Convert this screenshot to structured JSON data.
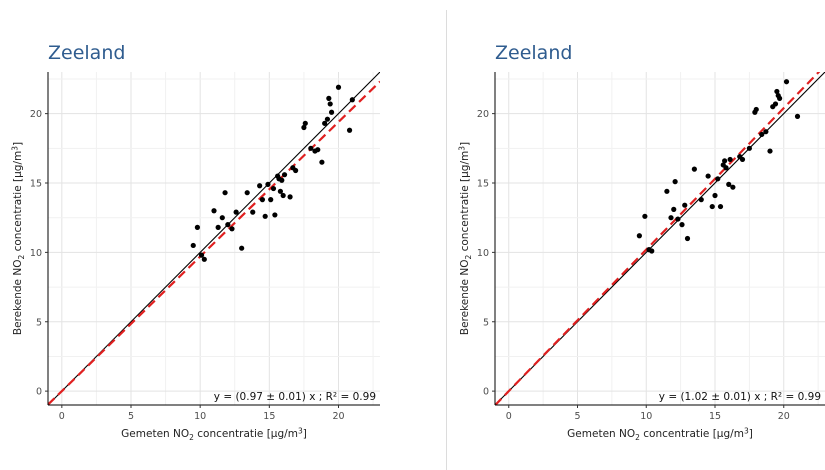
{
  "chart_data": [
    {
      "type": "scatter",
      "title": "Zeeland",
      "xlabel": {
        "pre": "Gemeten NO",
        "sub": "2",
        "post": " concentratie [µg/m",
        "sup": "3",
        "end": "]"
      },
      "ylabel": {
        "pre": "Berekende NO",
        "sub": "2",
        "post": " concentratie [µg/m",
        "sup": "3",
        "end": "]"
      },
      "xlim": [
        -1,
        23
      ],
      "ylim": [
        -1,
        23
      ],
      "xticks": [
        0,
        5,
        10,
        15,
        20
      ],
      "yticks": [
        0,
        5,
        10,
        15,
        20
      ],
      "grid": true,
      "equation": "y = (0.97 ± 0.01) x ; R² = 0.99",
      "slope": 0.97,
      "identity_line": true,
      "colors": {
        "points": "#000000",
        "fit": "#e02020",
        "identity": "#000000",
        "title": "#2f5c8f"
      },
      "points": [
        [
          9.5,
          10.5
        ],
        [
          9.8,
          11.8
        ],
        [
          10.1,
          9.8
        ],
        [
          10.3,
          9.5
        ],
        [
          11.0,
          13.0
        ],
        [
          11.3,
          11.8
        ],
        [
          11.6,
          12.5
        ],
        [
          11.8,
          14.3
        ],
        [
          12.0,
          12.0
        ],
        [
          12.3,
          11.7
        ],
        [
          12.6,
          12.9
        ],
        [
          13.0,
          10.3
        ],
        [
          13.4,
          14.3
        ],
        [
          13.8,
          12.9
        ],
        [
          14.3,
          14.8
        ],
        [
          14.5,
          13.8
        ],
        [
          14.7,
          12.6
        ],
        [
          14.9,
          14.9
        ],
        [
          15.1,
          13.8
        ],
        [
          15.3,
          14.6
        ],
        [
          15.4,
          12.7
        ],
        [
          15.6,
          15.5
        ],
        [
          15.7,
          15.3
        ],
        [
          15.8,
          14.4
        ],
        [
          15.9,
          15.2
        ],
        [
          16.0,
          14.1
        ],
        [
          16.1,
          15.6
        ],
        [
          16.5,
          14.0
        ],
        [
          16.7,
          16.1
        ],
        [
          16.9,
          15.9
        ],
        [
          17.5,
          19.0
        ],
        [
          17.6,
          19.3
        ],
        [
          18.0,
          17.5
        ],
        [
          18.3,
          17.3
        ],
        [
          18.5,
          17.4
        ],
        [
          18.8,
          16.5
        ],
        [
          19.0,
          19.3
        ],
        [
          19.2,
          19.6
        ],
        [
          19.3,
          21.1
        ],
        [
          19.4,
          20.7
        ],
        [
          19.5,
          20.1
        ],
        [
          20.0,
          21.9
        ],
        [
          20.8,
          18.8
        ],
        [
          21.0,
          21.0
        ]
      ]
    },
    {
      "type": "scatter",
      "title": "Zeeland",
      "xlabel": {
        "pre": "Gemeten NO",
        "sub": "2",
        "post": " concentratie [µg/m",
        "sup": "3",
        "end": "]"
      },
      "ylabel": {
        "pre": "Berekende NO",
        "sub": "2",
        "post": " concentratie [µg/m",
        "sup": "3",
        "end": "]"
      },
      "xlim": [
        -1,
        23
      ],
      "ylim": [
        -1,
        23
      ],
      "xticks": [
        0,
        5,
        10,
        15,
        20
      ],
      "yticks": [
        0,
        5,
        10,
        15,
        20
      ],
      "grid": true,
      "equation": "y = (1.02 ± 0.01) x ; R² = 0.99",
      "slope": 1.02,
      "identity_line": true,
      "colors": {
        "points": "#000000",
        "fit": "#e02020",
        "identity": "#000000",
        "title": "#2f5c8f"
      },
      "points": [
        [
          9.5,
          11.2
        ],
        [
          9.9,
          12.6
        ],
        [
          10.2,
          10.2
        ],
        [
          10.4,
          10.1
        ],
        [
          11.5,
          14.4
        ],
        [
          11.8,
          12.5
        ],
        [
          12.0,
          13.1
        ],
        [
          12.1,
          15.1
        ],
        [
          12.3,
          12.4
        ],
        [
          12.6,
          12.0
        ],
        [
          12.8,
          13.4
        ],
        [
          13.0,
          11.0
        ],
        [
          13.5,
          16.0
        ],
        [
          14.0,
          13.8
        ],
        [
          14.5,
          15.5
        ],
        [
          14.8,
          13.3
        ],
        [
          15.0,
          14.1
        ],
        [
          15.2,
          15.3
        ],
        [
          15.4,
          13.3
        ],
        [
          15.6,
          16.3
        ],
        [
          15.7,
          16.6
        ],
        [
          15.8,
          16.1
        ],
        [
          16.0,
          14.9
        ],
        [
          16.1,
          16.7
        ],
        [
          16.3,
          14.7
        ],
        [
          16.8,
          16.9
        ],
        [
          17.0,
          16.7
        ],
        [
          17.5,
          17.5
        ],
        [
          17.9,
          20.1
        ],
        [
          18.0,
          20.3
        ],
        [
          18.4,
          18.5
        ],
        [
          18.7,
          18.7
        ],
        [
          19.0,
          17.3
        ],
        [
          19.2,
          20.5
        ],
        [
          19.4,
          20.7
        ],
        [
          19.5,
          21.6
        ],
        [
          19.6,
          21.3
        ],
        [
          19.7,
          21.1
        ],
        [
          20.2,
          22.3
        ],
        [
          21.0,
          19.8
        ]
      ]
    }
  ]
}
